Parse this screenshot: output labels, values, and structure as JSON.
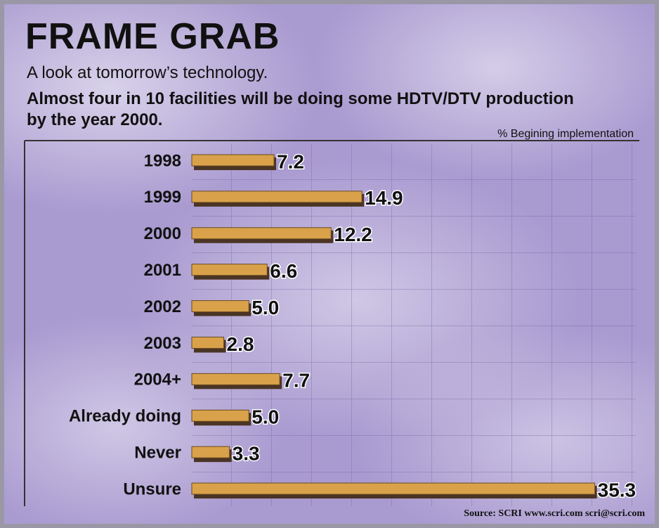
{
  "chart_data": {
    "type": "hbar",
    "title": "FRAME GRAB",
    "subtitle": "A look at tomorrow’s technology.",
    "headline": "Almost four in 10 facilities will be doing some HDTV/DTV production by the year 2000.",
    "x_label": "% Begining implementation",
    "source": "Source: SCRI  www.scri.com  scri@scri.com",
    "categories": [
      "1998",
      "1999",
      "2000",
      "2001",
      "2002",
      "2003",
      "2004+",
      "Already doing",
      "Never",
      "Unsure"
    ],
    "values": [
      7.2,
      14.9,
      12.2,
      6.6,
      5.0,
      2.8,
      7.7,
      5.0,
      3.3,
      35.3
    ],
    "value_labels": [
      "7.2",
      "14.9",
      "12.2",
      "6.6",
      "5.0",
      "2.8",
      "7.7",
      "5.0",
      "3.3",
      "35.3"
    ],
    "color": "#d9a24a",
    "xlim": [
      0,
      36
    ],
    "grid": true
  }
}
